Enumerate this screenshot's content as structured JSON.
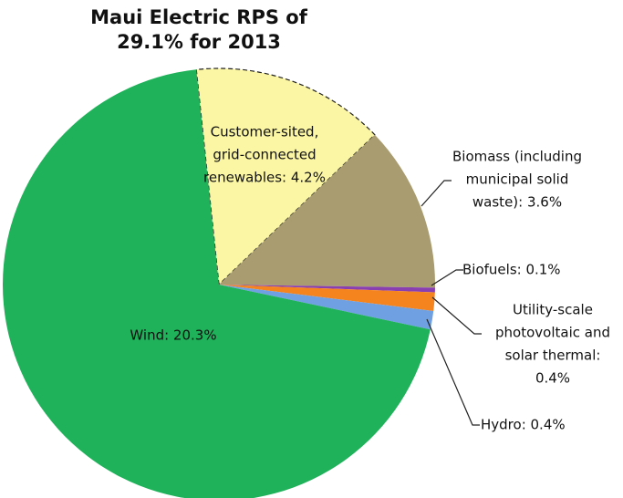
{
  "chart_data": {
    "type": "pie",
    "title": [
      "Maui Electric RPS of",
      "29.1% for 2013"
    ],
    "values": [
      4.2,
      3.6,
      0.1,
      0.4,
      0.4,
      20.3
    ],
    "value_labels": [
      [
        "Customer-sited,",
        "grid-connected",
        "renewables: 4.2%"
      ],
      [
        "Biomass (including",
        "municipal solid",
        "waste): 3.6%"
      ],
      [
        "Biofuels: 0.1%"
      ],
      [
        "Utility-scale",
        "photovoltaic and",
        "solar thermal:",
        "0.4%"
      ],
      [
        "Hydro: 0.4%"
      ],
      [
        "Wind: 20.3%"
      ]
    ],
    "colors": [
      "#fbf6a4",
      "#a99c70",
      "#8a3fb0",
      "#f5841f",
      "#6fa0e2",
      "#1fb25a"
    ]
  }
}
